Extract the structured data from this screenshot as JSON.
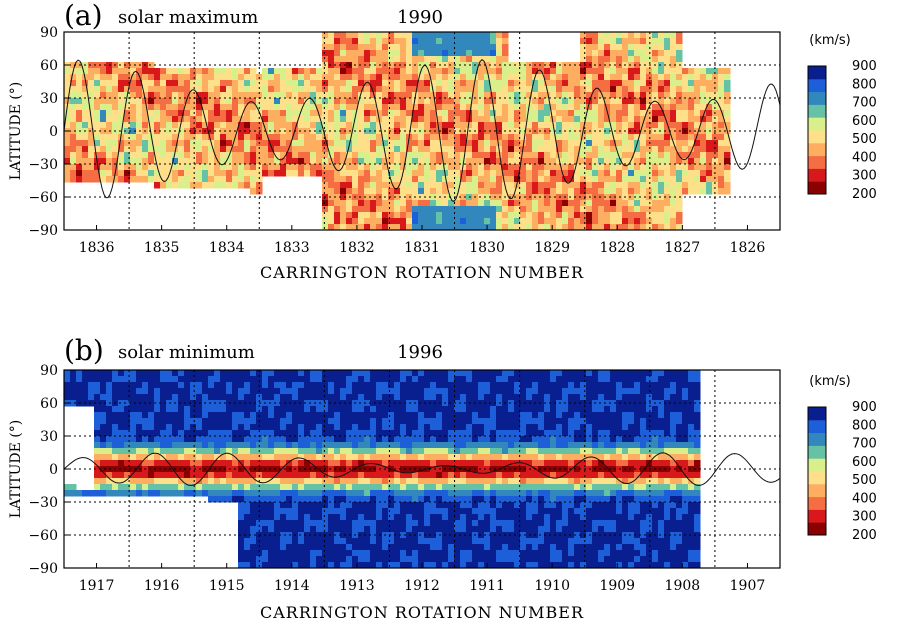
{
  "colormap": [
    "#8b0000",
    "#d7191c",
    "#f46d43",
    "#fdae61",
    "#fee08b",
    "#d9ef8b",
    "#66c2a5",
    "#3288bd",
    "#1c5fd8",
    "#0a1f8f"
  ],
  "chart_data": [
    {
      "type": "heatmap",
      "panel_label": "(a)",
      "subtitle": "solar maximum",
      "year": "1990",
      "xlabel": "CARRINGTON ROTATION NUMBER",
      "ylabel": "LATITUDE (°)",
      "xticks": [
        "1836",
        "1835",
        "1834",
        "1833",
        "1832",
        "1831",
        "1830",
        "1829",
        "1828",
        "1827",
        "1826"
      ],
      "yticks": [
        "90",
        "60",
        "30",
        "0",
        "−30",
        "−60",
        "−90"
      ],
      "ylim": [
        -90,
        90
      ],
      "colorbar": {
        "unit": "(km/s)",
        "ticks": [
          "900",
          "800",
          "700",
          "600",
          "500",
          "400",
          "300",
          "200"
        ],
        "range": [
          200,
          900
        ]
      },
      "regime": "max",
      "overlay": {
        "name": "heliospheric current sheet",
        "amplitude_deg": 65
      }
    },
    {
      "type": "heatmap",
      "panel_label": "(b)",
      "subtitle": "solar minimum",
      "year": "1996",
      "xlabel": "CARRINGTON ROTATION NUMBER",
      "ylabel": "LATITUDE (°)",
      "xticks": [
        "1917",
        "1916",
        "1915",
        "1914",
        "1913",
        "1912",
        "1911",
        "1910",
        "1909",
        "1908",
        "1907"
      ],
      "yticks": [
        "90",
        "60",
        "30",
        "0",
        "−30",
        "−60",
        "−90"
      ],
      "ylim": [
        -90,
        90
      ],
      "colorbar": {
        "unit": "(km/s)",
        "ticks": [
          "900",
          "800",
          "700",
          "600",
          "500",
          "400",
          "300",
          "200"
        ],
        "range": [
          200,
          900
        ]
      },
      "regime": "min",
      "overlay": {
        "name": "heliospheric current sheet",
        "amplitude_deg": 15
      }
    }
  ]
}
